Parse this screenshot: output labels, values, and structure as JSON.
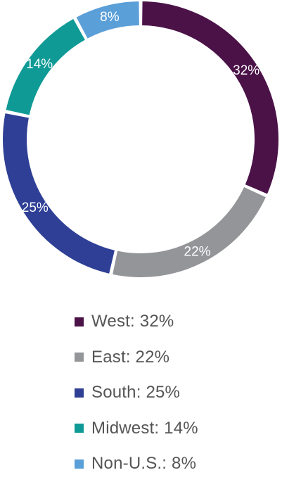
{
  "chart_data": {
    "type": "pie",
    "donut": true,
    "title": "",
    "slices": [
      {
        "label": "32%",
        "legend": "West: 32%",
        "value": 32,
        "color": "#4b1248"
      },
      {
        "label": "22%",
        "legend": "East: 22%",
        "value": 22,
        "color": "#939598"
      },
      {
        "label": "25%",
        "legend": "South: 25%",
        "value": 25,
        "color": "#2e3f95"
      },
      {
        "label": "14%",
        "legend": "Midwest: 14%",
        "value": 14,
        "color": "#0f9a96"
      },
      {
        "label": "8%",
        "legend": "Non-U.S.: 8%",
        "value": 8,
        "color": "#5a9fd8"
      }
    ],
    "legend_placement": "bottom"
  }
}
